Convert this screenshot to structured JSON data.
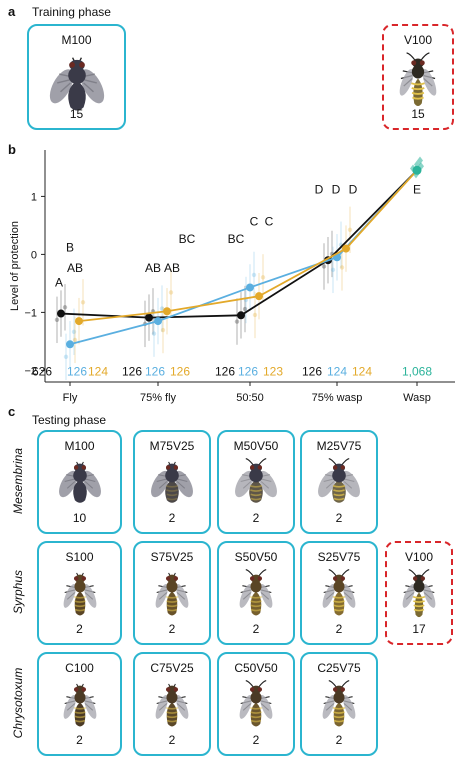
{
  "panels": {
    "a": {
      "letter": "a",
      "phase": "Training phase",
      "cards": [
        {
          "label": "M100",
          "count": "15",
          "type": "fly",
          "style": "solid",
          "mix": 0
        },
        {
          "label": "V100",
          "count": "15",
          "type": "wasp",
          "style": "dashed",
          "mix": 1
        }
      ]
    },
    "b": {
      "letter": "b"
    },
    "c": {
      "letter": "c",
      "phase": "Testing phase",
      "rows": [
        {
          "name": "Mesembrina",
          "cards": [
            {
              "label": "M100",
              "count": "10",
              "mix": 0,
              "type": "fly"
            },
            {
              "label": "M75V25",
              "count": "2",
              "mix": 0.25,
              "type": "fly"
            },
            {
              "label": "M50V50",
              "count": "2",
              "mix": 0.5,
              "type": "fly"
            },
            {
              "label": "M25V75",
              "count": "2",
              "mix": 0.75,
              "type": "fly"
            }
          ]
        },
        {
          "name": "Syrphus",
          "cards": [
            {
              "label": "S100",
              "count": "2",
              "mix": 0,
              "type": "hover"
            },
            {
              "label": "S75V25",
              "count": "2",
              "mix": 0.25,
              "type": "hover"
            },
            {
              "label": "S50V50",
              "count": "2",
              "mix": 0.5,
              "type": "hover"
            },
            {
              "label": "S25V75",
              "count": "2",
              "mix": 0.75,
              "type": "hover"
            }
          ]
        },
        {
          "name": "Chrysotoxum",
          "cards": [
            {
              "label": "C100",
              "count": "2",
              "mix": 0,
              "type": "hover2"
            },
            {
              "label": "C75V25",
              "count": "2",
              "mix": 0.25,
              "type": "hover2"
            },
            {
              "label": "C50V50",
              "count": "2",
              "mix": 0.5,
              "type": "hover2"
            },
            {
              "label": "C25V75",
              "count": "2",
              "mix": 0.75,
              "type": "hover2"
            }
          ]
        }
      ],
      "extra_card": {
        "label": "V100",
        "count": "17",
        "type": "wasp",
        "style": "dashed",
        "mix": 1
      }
    }
  },
  "chart_data": {
    "type": "line",
    "ylabel": "Level of protection",
    "xlabel": "",
    "categories": [
      "Fly",
      "75% fly",
      "50:50",
      "75% wasp",
      "Wasp"
    ],
    "ylim": [
      -2.2,
      1.8
    ],
    "yticks": [
      -2,
      -1,
      0,
      1
    ],
    "colors": {
      "Mesembrina": "#111111",
      "Syrphus": "#5aafe0",
      "Chrysotoxum": "#e3a92a",
      "Wasp": "#2bb39a"
    },
    "series": [
      {
        "key": "Mesembrina",
        "values": [
          -1.02,
          -1.09,
          -1.05,
          -0.1,
          1.45
        ],
        "ns": [
          "626",
          "126",
          "126",
          "126"
        ],
        "letters": [
          "B",
          "AB",
          "BC",
          "D"
        ]
      },
      {
        "key": "Syrphus",
        "values": [
          -1.55,
          -1.15,
          -0.57,
          -0.05,
          1.45
        ],
        "ns": [
          "126",
          "126",
          "126",
          "124"
        ],
        "letters": [
          "A",
          "AB",
          "C",
          "D"
        ]
      },
      {
        "key": "Chrysotoxum",
        "values": [
          -1.15,
          -0.98,
          -0.72,
          0.1,
          1.45
        ],
        "ns": [
          "124",
          "126",
          "123",
          "124"
        ],
        "letters": [
          "AB",
          "BC",
          "C",
          "D"
        ]
      }
    ],
    "wasp": {
      "value": 1.45,
      "n": "1,068",
      "letter": "E"
    }
  }
}
